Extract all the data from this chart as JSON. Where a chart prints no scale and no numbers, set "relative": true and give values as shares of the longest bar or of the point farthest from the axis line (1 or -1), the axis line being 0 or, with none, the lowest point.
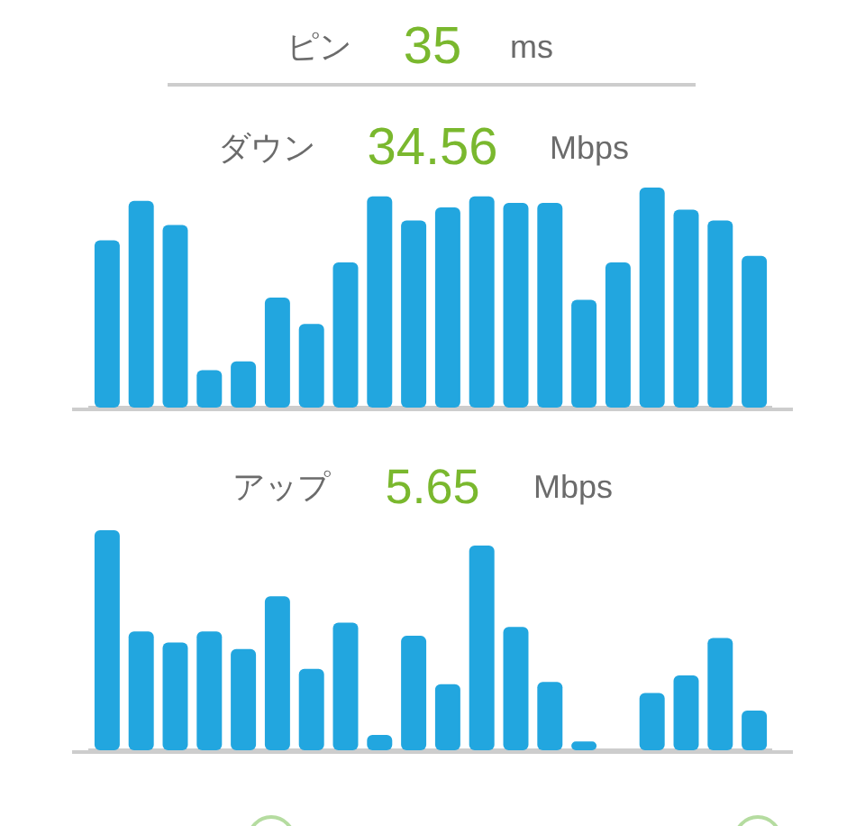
{
  "chart_data": [
    {
      "type": "other",
      "title": "ピン",
      "subtitle": "35",
      "annotations": [
        "ms"
      ]
    },
    {
      "type": "bar",
      "title": "ダウン",
      "subtitle": "34.56",
      "annotations": [
        "Mbps"
      ],
      "categories": [
        null,
        null,
        null,
        null,
        null,
        null,
        null,
        null,
        null,
        null,
        null,
        null,
        null,
        null,
        null,
        null,
        null,
        null,
        null,
        null
      ],
      "values": [
        0.76,
        0.94,
        0.83,
        0.17,
        0.21,
        0.5,
        0.38,
        0.66,
        0.96,
        0.85,
        0.91,
        0.96,
        0.93,
        0.93,
        0.49,
        0.66,
        1,
        0.9,
        0.85,
        0.69
      ],
      "color": "#22a6df",
      "relative": true,
      "tick_labels": false
    },
    {
      "type": "bar",
      "title": "アップ",
      "subtitle": "5.65",
      "annotations": [
        "Mbps"
      ],
      "categories": [
        null,
        null,
        null,
        null,
        null,
        null,
        null,
        null,
        null,
        null,
        null,
        null,
        null,
        null,
        null,
        null,
        null,
        null,
        null,
        null
      ],
      "values": [
        1,
        0.54,
        0.49,
        0.54,
        0.46,
        0.7,
        0.37,
        0.58,
        0.07,
        0.52,
        0.3,
        0.93,
        0.56,
        0.31,
        0.04,
        null,
        0.26,
        0.34,
        0.51,
        0.18
      ],
      "color": "#22a6df",
      "relative": true,
      "tick_labels": false
    }
  ]
}
